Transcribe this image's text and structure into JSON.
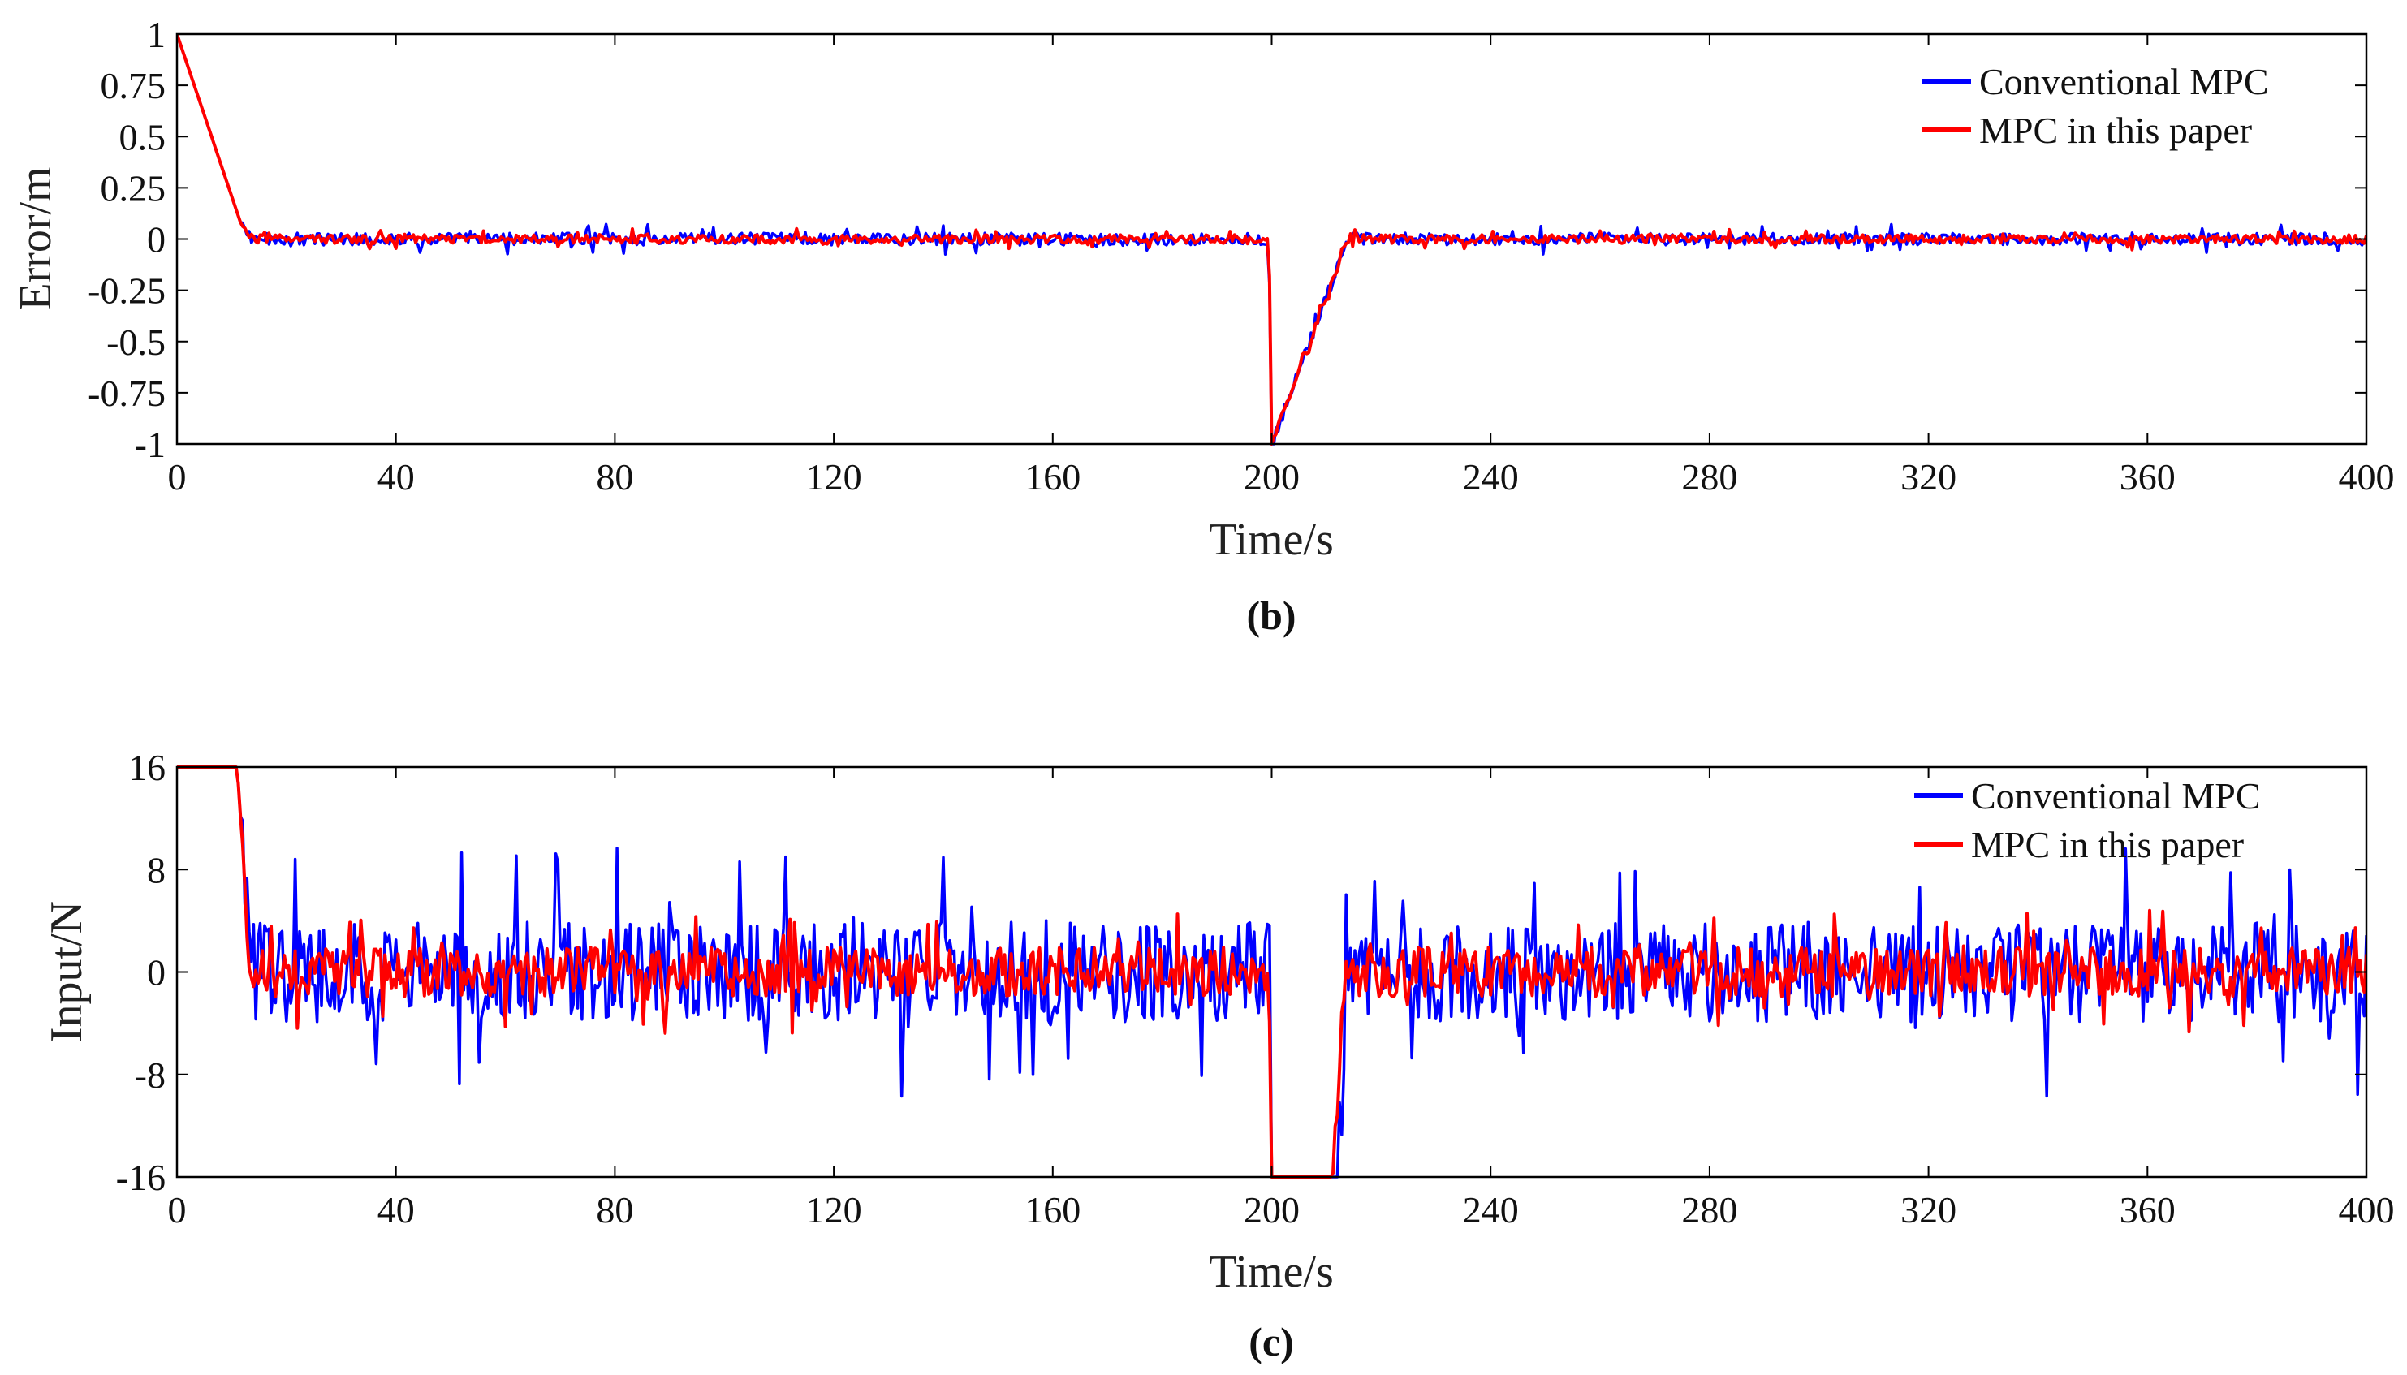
{
  "colors": {
    "conventional": "#0000ff",
    "proposed": "#ff0000",
    "axis": "#000000"
  },
  "chart_data": [
    {
      "type": "line",
      "caption": "(b)",
      "xlabel": "Time/s",
      "ylabel": "Error/m",
      "xlim": [
        0,
        400
      ],
      "ylim": [
        -1,
        1
      ],
      "xticks": [
        "0",
        "40",
        "80",
        "120",
        "160",
        "200",
        "240",
        "280",
        "320",
        "360",
        "400"
      ],
      "yticks": [
        "-1",
        "-0.75",
        "-0.5",
        "-0.25",
        "0",
        "0.25",
        "0.5",
        "0.75",
        "1"
      ],
      "xtick_values": [
        0,
        40,
        80,
        120,
        160,
        200,
        240,
        280,
        320,
        360,
        400
      ],
      "ytick_values": [
        -1,
        -0.75,
        -0.5,
        -0.25,
        0,
        0.25,
        0.5,
        0.75,
        1
      ],
      "legend": {
        "position": "top-right",
        "entries": [
          "Conventional MPC",
          "MPC in this paper"
        ]
      },
      "grid": false,
      "series": [
        {
          "name": "Conventional MPC",
          "color": "#0000ff",
          "noise_amplitude": 0.05,
          "x": [
            0,
            12,
            14,
            199.5,
            200,
            214,
            400
          ],
          "y": [
            1,
            0.05,
            0,
            0,
            -1,
            0,
            0
          ]
        },
        {
          "name": "MPC in this paper",
          "color": "#ff0000",
          "noise_amplitude": 0.035,
          "x": [
            0,
            12,
            14,
            199.5,
            200,
            214,
            400
          ],
          "y": [
            1,
            0.05,
            0,
            0,
            -1,
            0,
            0
          ]
        }
      ]
    },
    {
      "type": "line",
      "caption": "(c)",
      "xlabel": "Time/s",
      "ylabel": "Input/N",
      "xlim": [
        0,
        400
      ],
      "ylim": [
        -16,
        16
      ],
      "xticks": [
        "0",
        "40",
        "80",
        "120",
        "160",
        "200",
        "240",
        "280",
        "320",
        "360",
        "400"
      ],
      "yticks": [
        "-16",
        "-8",
        "0",
        "8",
        "16"
      ],
      "xtick_values": [
        0,
        40,
        80,
        120,
        160,
        200,
        240,
        280,
        320,
        360,
        400
      ],
      "ytick_values": [
        -16,
        -8,
        0,
        8,
        16
      ],
      "legend": {
        "position": "top-right",
        "entries": [
          "Conventional MPC",
          "MPC in this paper"
        ]
      },
      "grid": false,
      "series": [
        {
          "name": "Conventional MPC",
          "color": "#0000ff",
          "noise_amplitude": 6.5,
          "x": [
            0,
            11,
            13.5,
            199.5,
            200,
            212,
            214,
            400
          ],
          "y": [
            16,
            16,
            0,
            0,
            -16,
            -16,
            0,
            0
          ]
        },
        {
          "name": "MPC in this paper",
          "color": "#ff0000",
          "noise_amplitude": 3.2,
          "x": [
            0,
            11,
            13.5,
            199.5,
            200,
            211,
            213.5,
            400
          ],
          "y": [
            16,
            16,
            0,
            0,
            -16,
            -16,
            0,
            0
          ]
        }
      ]
    }
  ]
}
